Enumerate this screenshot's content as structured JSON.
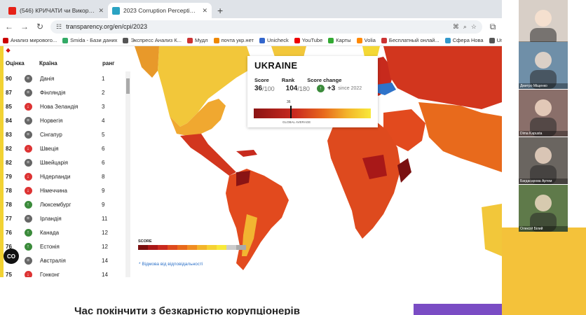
{
  "browser": {
    "tabs": [
      {
        "title": "(546) КРИЧАТИ чи Викоріни",
        "favicon_color": "#e62117",
        "active": false
      },
      {
        "title": "2023 Corruption Perceptions In",
        "favicon_color": "#2aa3c2",
        "active": true
      }
    ],
    "new_tab": "+",
    "url": "transparency.org/en/cpi/2023",
    "bookmarks": [
      {
        "label": "Анализ мирового...",
        "color": "#c00"
      },
      {
        "label": "Smida - Бази даних",
        "color": "#3a6"
      },
      {
        "label": "Экспресс Анализ К...",
        "color": "#555"
      },
      {
        "label": "Мудл",
        "color": "#c33"
      },
      {
        "label": "почта укр.нет",
        "color": "#e80"
      },
      {
        "label": "Unicheck",
        "color": "#36c"
      },
      {
        "label": "YouTube",
        "color": "#e00"
      },
      {
        "label": "Карты",
        "color": "#3a3"
      },
      {
        "label": "Volia",
        "color": "#f80"
      },
      {
        "label": "Бесплатный онлай...",
        "color": "#c33"
      },
      {
        "label": "Сфера Нова",
        "color": "#39c"
      },
      {
        "label": "Untitled Project",
        "color": "#555"
      }
    ]
  },
  "table": {
    "headers": {
      "score": "Оцінка",
      "country": "Країна",
      "rank": "ранг"
    },
    "rows": [
      {
        "score": "90",
        "change": "=",
        "color": "#666",
        "country": "Данія",
        "rank": "1"
      },
      {
        "score": "87",
        "change": "=",
        "color": "#666",
        "country": "Фінляндія",
        "rank": "2"
      },
      {
        "score": "85",
        "change": "↓",
        "color": "#d33",
        "country": "Нова Зеландія",
        "rank": "3"
      },
      {
        "score": "84",
        "change": "=",
        "color": "#666",
        "country": "Норвегія",
        "rank": "4"
      },
      {
        "score": "83",
        "change": "=",
        "color": "#666",
        "country": "Сінгапур",
        "rank": "5"
      },
      {
        "score": "82",
        "change": "↓",
        "color": "#d33",
        "country": "Швеція",
        "rank": "6"
      },
      {
        "score": "82",
        "change": "=",
        "color": "#666",
        "country": "Швейцарія",
        "rank": "6"
      },
      {
        "score": "79",
        "change": "↓",
        "color": "#d33",
        "country": "Нідерланди",
        "rank": "8"
      },
      {
        "score": "78",
        "change": "↓",
        "color": "#d33",
        "country": "Німеччина",
        "rank": "9"
      },
      {
        "score": "78",
        "change": "↑",
        "color": "#3b8b3b",
        "country": "Люксембург",
        "rank": "9"
      },
      {
        "score": "77",
        "change": "=",
        "color": "#666",
        "country": "Ірландія",
        "rank": "11"
      },
      {
        "score": "76",
        "change": "↑",
        "color": "#3b8b3b",
        "country": "Канада",
        "rank": "12"
      },
      {
        "score": "76",
        "change": "↑",
        "color": "#3b8b3b",
        "country": "Естонія",
        "rank": "12"
      },
      {
        "score": "75",
        "change": "=",
        "color": "#666",
        "country": "Австралія",
        "rank": "14"
      },
      {
        "score": "75",
        "change": "↓",
        "color": "#d33",
        "country": "Гонконг",
        "rank": "14"
      }
    ]
  },
  "map": {
    "legend_title": "SCORE",
    "legend_colors": [
      "#7a1010",
      "#a81818",
      "#c92a1f",
      "#de4a1e",
      "#e86a1c",
      "#f08d22",
      "#f3b52a",
      "#f6d233",
      "#f8e93b",
      "#cccccc",
      "#aaaaaa"
    ],
    "independent_link": "* Відмова від відповідальності"
  },
  "popup": {
    "country": "UKRAINE",
    "score_label": "Score",
    "rank_label": "Rank",
    "change_label": "Score change",
    "score": "36",
    "score_max": "/100",
    "rank": "104",
    "rank_max": "/180",
    "change": "+3",
    "since": "since 2022",
    "marker_value": "36",
    "global_label": "GLOBAL AVERAGE"
  },
  "below": {
    "heading": "Час покінчити з безкарністю корупціонерів"
  },
  "call": {
    "participants": [
      {
        "name": "Алла Карнаушенко",
        "bg": "#d8cfc7"
      },
      {
        "name": "Дмитро Міщенко",
        "bg": "#6f8fa8"
      },
      {
        "name": "Dima Kapusta",
        "bg": "#8a6f6a"
      },
      {
        "name": "Багдасарова Артем",
        "bg": "#6a6560"
      },
      {
        "name": "Олексій Білий",
        "bg": "#5f7a4a"
      }
    ]
  },
  "cc_label": "CO"
}
